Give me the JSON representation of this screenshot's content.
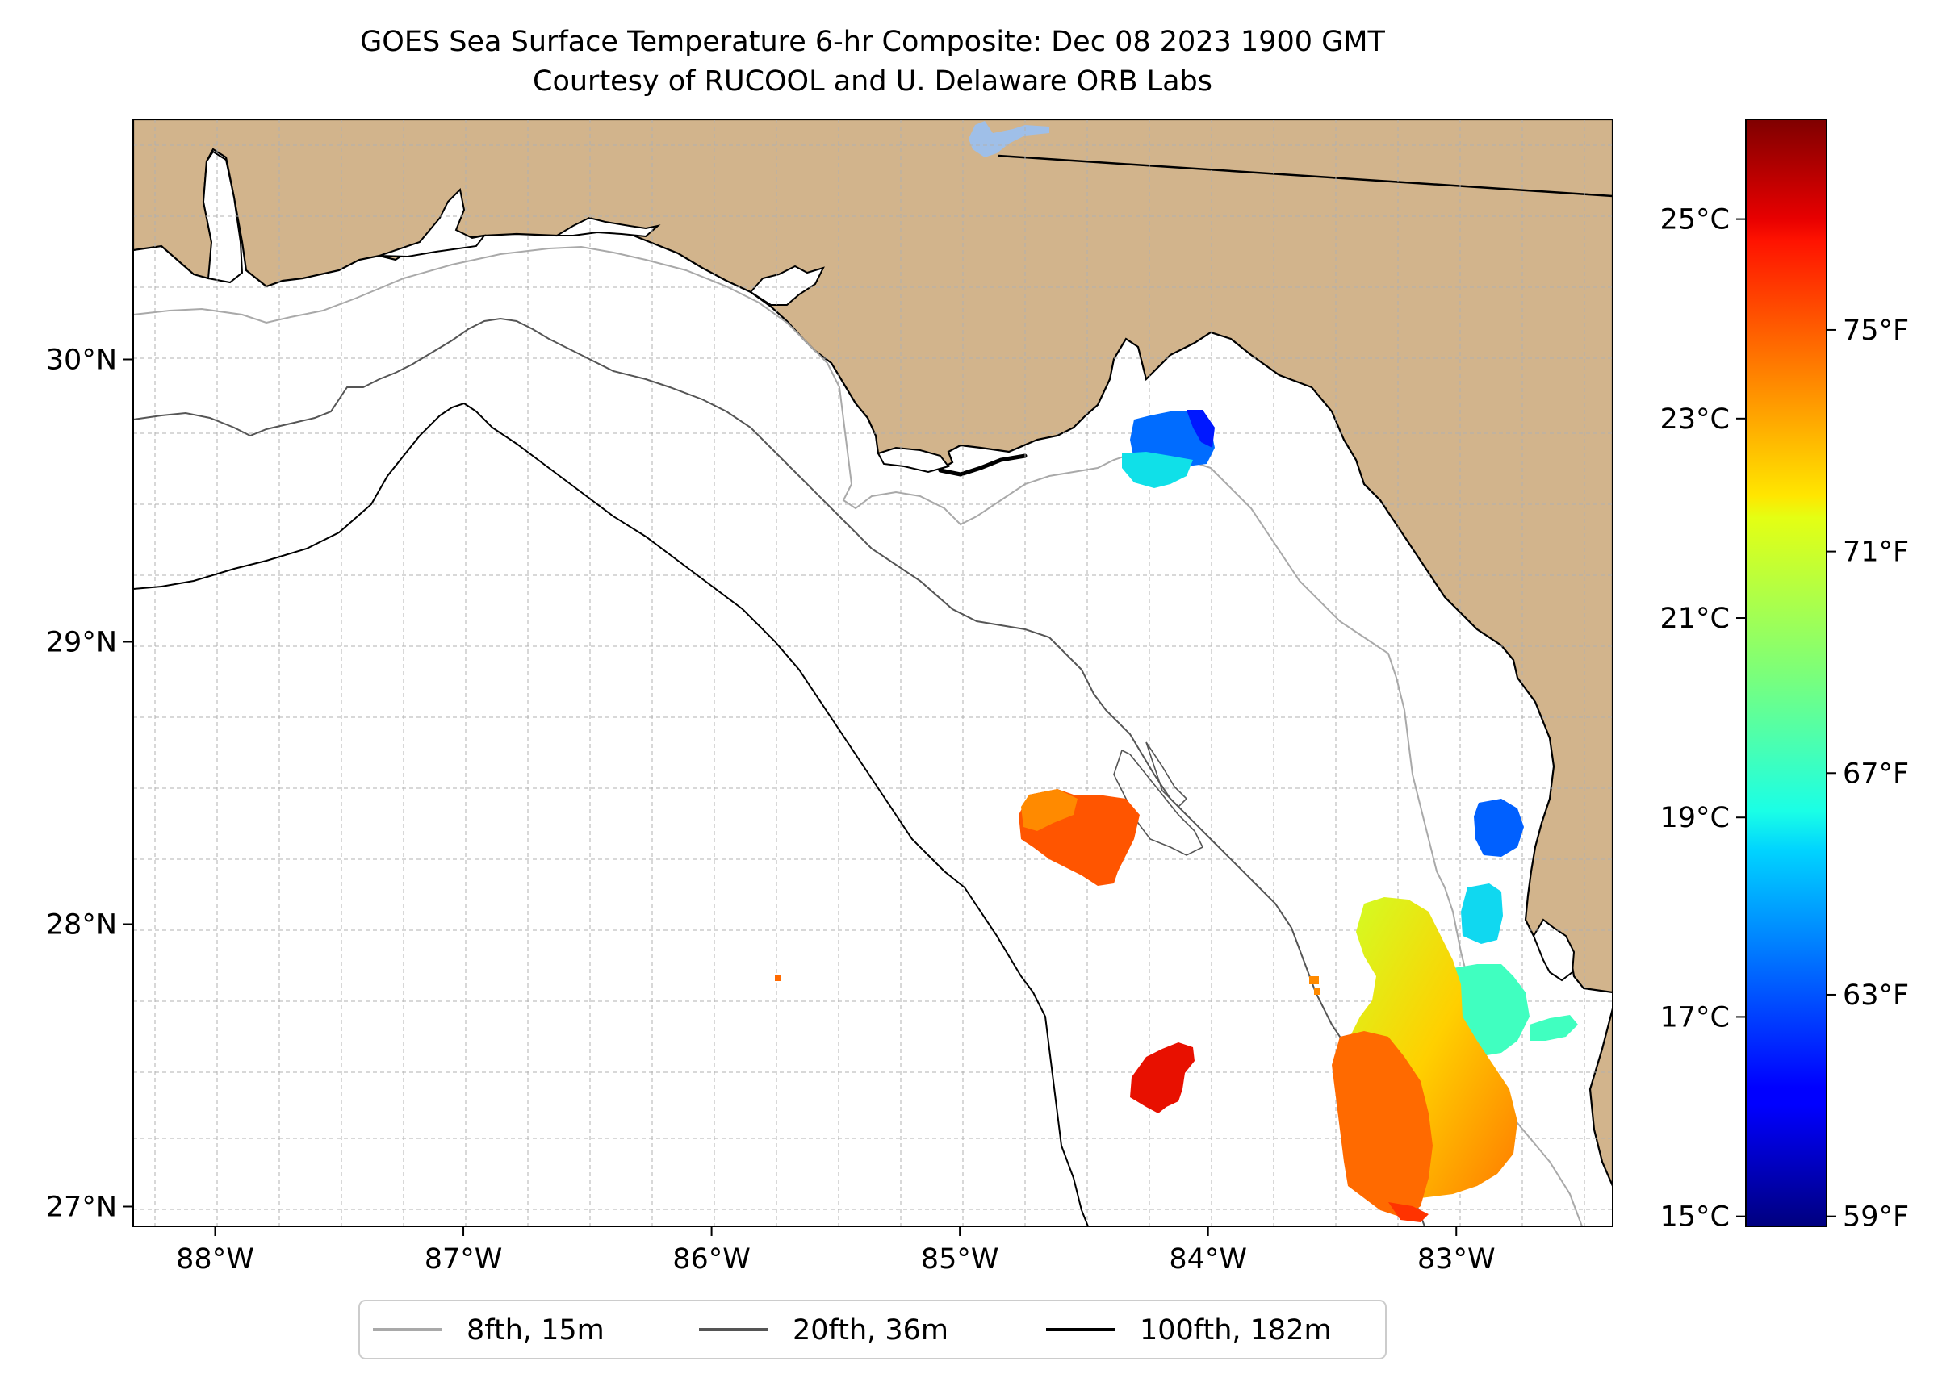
{
  "title": {
    "line1": "GOES Sea Surface Temperature 6-hr Composite: Dec 08 2023 1900 GMT",
    "line2": "Courtesy of RUCOOL and U. Delaware ORB Labs"
  },
  "map": {
    "lon_range": [
      -88.33,
      -82.37
    ],
    "lat_range": [
      26.93,
      30.85
    ],
    "lon_ticks": [
      {
        "value": -88,
        "label": "88°W"
      },
      {
        "value": -87,
        "label": "87°W"
      },
      {
        "value": -86,
        "label": "86°W"
      },
      {
        "value": -85,
        "label": "85°W"
      },
      {
        "value": -84,
        "label": "84°W"
      },
      {
        "value": -83,
        "label": "83°W"
      }
    ],
    "lat_ticks": [
      {
        "value": 27,
        "label": "27°N"
      },
      {
        "value": 28,
        "label": "28°N"
      },
      {
        "value": 29,
        "label": "29°N"
      },
      {
        "value": 30,
        "label": "30°N"
      }
    ],
    "land_color": "#d2b48c",
    "water_color": "#ffffff",
    "grid_color": "#b0b0b0"
  },
  "legend": {
    "placement": "bottom-center",
    "items": [
      {
        "label": "8fth, 15m",
        "color": "#a9a9a9"
      },
      {
        "label": "20fth, 36m",
        "color": "#555555"
      },
      {
        "label": "100fth, 182m",
        "color": "#000000"
      }
    ]
  },
  "colorbar": {
    "colormap": "jet",
    "range_c": [
      14.9,
      26.0
    ],
    "celsius_ticks": [
      {
        "value": 15,
        "label": "15°C"
      },
      {
        "value": 17,
        "label": "17°C"
      },
      {
        "value": 19,
        "label": "19°C"
      },
      {
        "value": 21,
        "label": "21°C"
      },
      {
        "value": 23,
        "label": "23°C"
      },
      {
        "value": 25,
        "label": "25°C"
      }
    ],
    "fahrenheit_ticks": [
      {
        "value": 59,
        "label": "59°F"
      },
      {
        "value": 63,
        "label": "63°F"
      },
      {
        "value": 67,
        "label": "67°F"
      },
      {
        "value": 71,
        "label": "71°F"
      },
      {
        "value": 75,
        "label": "75°F"
      }
    ]
  },
  "sst_patches": [
    {
      "name": "apalachee-bay-cool",
      "lon": -84.2,
      "lat": 29.7,
      "temp_c": 17.5
    },
    {
      "name": "offshore-warm",
      "lon": -84.5,
      "lat": 28.35,
      "temp_c": 23.2
    },
    {
      "name": "nature-coast-cool",
      "lon": -82.85,
      "lat": 28.35,
      "temp_c": 16.8
    },
    {
      "name": "nature-coast-mid",
      "lon": -82.9,
      "lat": 28.05,
      "temp_c": 18.6
    },
    {
      "name": "tampa-bay-mixed",
      "lon": -83.1,
      "lat": 27.6,
      "temp_c": 21.0
    },
    {
      "name": "southern-warm",
      "lon": -83.15,
      "lat": 27.3,
      "temp_c": 22.5
    },
    {
      "name": "southern-hot",
      "lon": -84.2,
      "lat": 27.45,
      "temp_c": 24.5
    },
    {
      "name": "small-pixel",
      "lon": -85.75,
      "lat": 27.82,
      "temp_c": 23.5
    }
  ]
}
